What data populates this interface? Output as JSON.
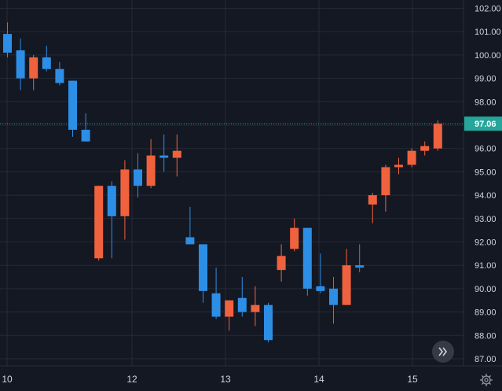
{
  "chart_data": {
    "type": "candlestick",
    "x_tick_labels": [
      "10",
      "12",
      "13",
      "14",
      "15"
    ],
    "y_tick_labels": [
      "102.00",
      "101.00",
      "100.00",
      "99.00",
      "98.00",
      "97.00",
      "96.00",
      "95.00",
      "94.00",
      "93.00",
      "92.00",
      "91.00",
      "90.00",
      "89.00",
      "88.00",
      "87.00"
    ],
    "ylim": [
      86.6,
      102.3
    ],
    "grid": true,
    "last_price": {
      "value": 97.06,
      "label": "97.06",
      "color": "#26a69a"
    },
    "colors": {
      "up": "#f0623e",
      "down": "#2d8ee6",
      "background": "#141823",
      "grid": "#252a36",
      "text": "#d1d4dc"
    },
    "candles": [
      {
        "o": 100.9,
        "h": 101.4,
        "l": 99.9,
        "c": 100.1
      },
      {
        "o": 100.2,
        "h": 100.7,
        "l": 98.5,
        "c": 99.0
      },
      {
        "o": 99.0,
        "h": 100.0,
        "l": 98.5,
        "c": 99.9
      },
      {
        "o": 99.9,
        "h": 100.4,
        "l": 99.3,
        "c": 99.4
      },
      {
        "o": 99.4,
        "h": 99.7,
        "l": 98.7,
        "c": 98.8
      },
      {
        "o": 98.9,
        "h": 98.9,
        "l": 96.5,
        "c": 96.8
      },
      {
        "o": 96.8,
        "h": 97.5,
        "l": 96.3,
        "c": 96.3
      },
      {
        "o": 91.3,
        "h": 94.4,
        "l": 91.2,
        "c": 94.4
      },
      {
        "o": 94.4,
        "h": 94.6,
        "l": 91.3,
        "c": 93.1
      },
      {
        "o": 93.1,
        "h": 95.5,
        "l": 92.1,
        "c": 95.1
      },
      {
        "o": 95.1,
        "h": 95.8,
        "l": 93.9,
        "c": 94.4
      },
      {
        "o": 94.4,
        "h": 96.4,
        "l": 94.3,
        "c": 95.7
      },
      {
        "o": 95.7,
        "h": 96.6,
        "l": 95.0,
        "c": 95.6
      },
      {
        "o": 95.6,
        "h": 96.6,
        "l": 94.8,
        "c": 95.9
      },
      {
        "o": 92.2,
        "h": 93.5,
        "l": 91.9,
        "c": 91.9
      },
      {
        "o": 91.9,
        "h": 91.9,
        "l": 89.4,
        "c": 89.9
      },
      {
        "o": 89.8,
        "h": 90.9,
        "l": 88.7,
        "c": 88.8
      },
      {
        "o": 88.8,
        "h": 89.5,
        "l": 88.2,
        "c": 89.5
      },
      {
        "o": 89.6,
        "h": 90.5,
        "l": 88.8,
        "c": 89.0
      },
      {
        "o": 89.0,
        "h": 90.1,
        "l": 88.4,
        "c": 89.3
      },
      {
        "o": 89.3,
        "h": 89.4,
        "l": 87.7,
        "c": 87.8
      },
      {
        "o": 90.8,
        "h": 91.9,
        "l": 90.3,
        "c": 91.4
      },
      {
        "o": 91.7,
        "h": 93.0,
        "l": 91.6,
        "c": 92.6
      },
      {
        "o": 92.6,
        "h": 92.6,
        "l": 89.7,
        "c": 90.0
      },
      {
        "o": 90.1,
        "h": 91.5,
        "l": 89.8,
        "c": 89.9
      },
      {
        "o": 90.0,
        "h": 90.5,
        "l": 88.5,
        "c": 89.3
      },
      {
        "o": 89.3,
        "h": 91.7,
        "l": 89.3,
        "c": 91.0
      },
      {
        "o": 91.0,
        "h": 91.9,
        "l": 90.7,
        "c": 90.9
      },
      {
        "o": 93.6,
        "h": 94.1,
        "l": 92.8,
        "c": 94.0
      },
      {
        "o": 94.0,
        "h": 95.3,
        "l": 93.3,
        "c": 95.2
      },
      {
        "o": 95.2,
        "h": 95.6,
        "l": 94.9,
        "c": 95.3
      },
      {
        "o": 95.3,
        "h": 96.0,
        "l": 95.2,
        "c": 95.9
      },
      {
        "o": 95.9,
        "h": 96.3,
        "l": 95.7,
        "c": 96.1
      },
      {
        "o": 96.0,
        "h": 97.2,
        "l": 95.9,
        "c": 97.06
      }
    ]
  }
}
